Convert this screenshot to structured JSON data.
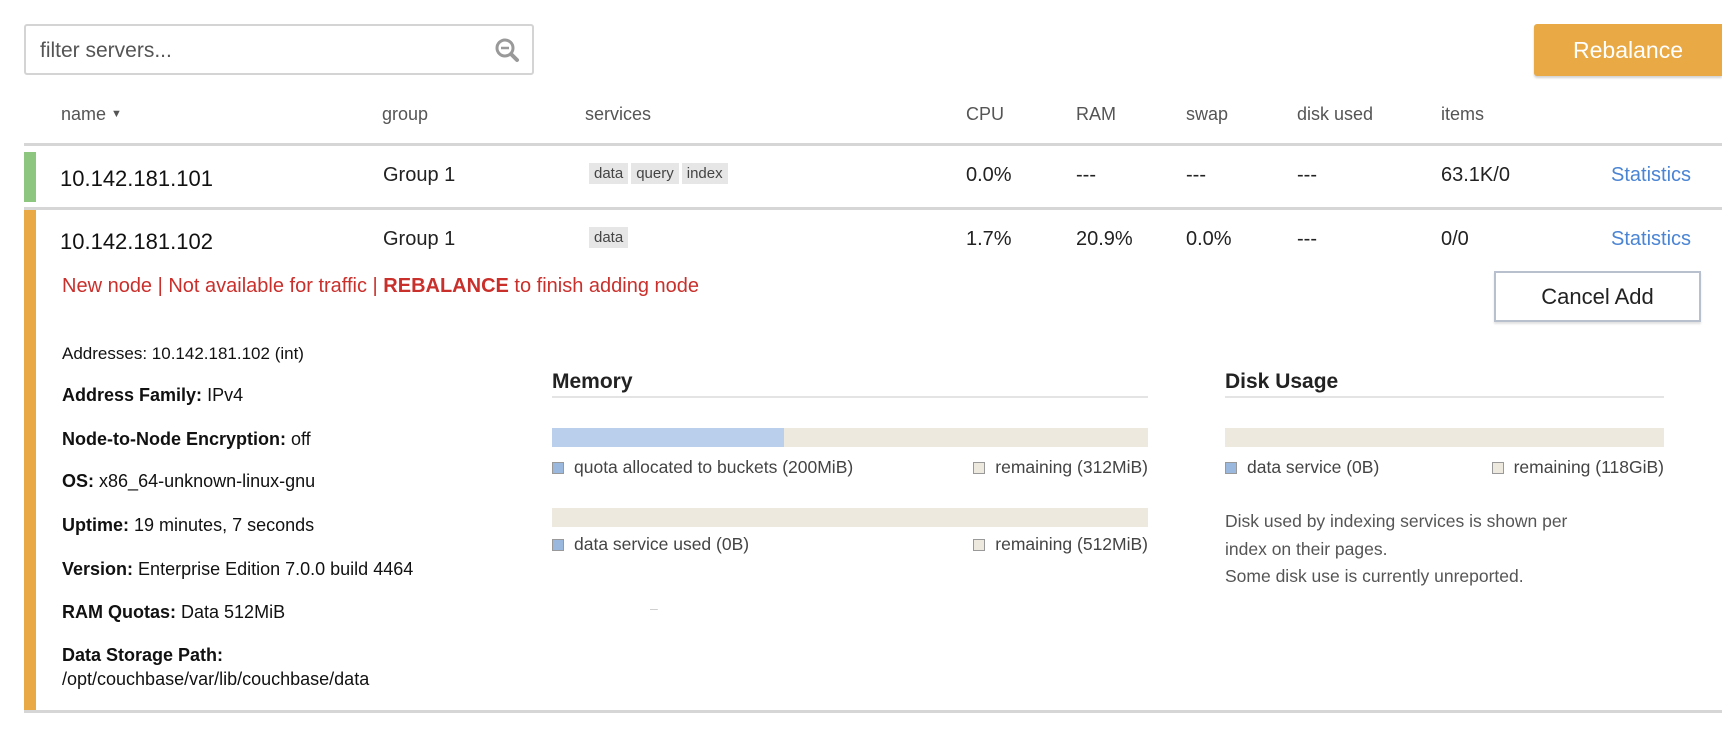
{
  "toolbar": {
    "filter_placeholder": "filter servers...",
    "rebalance_label": "Rebalance"
  },
  "columns": {
    "name": "name",
    "group": "group",
    "services": "services",
    "cpu": "CPU",
    "ram": "RAM",
    "swap": "swap",
    "disk_used": "disk used",
    "items": "items"
  },
  "colors": {
    "accent": "#e9a944",
    "healthy": "#8dc77f",
    "pending": "#e9a944",
    "link": "#4a84d4",
    "warning_text": "#c9302c"
  },
  "servers": [
    {
      "name": "10.142.181.101",
      "group": "Group 1",
      "services": [
        "data",
        "query",
        "index"
      ],
      "cpu": "0.0%",
      "ram": "---",
      "swap": "---",
      "disk_used": "---",
      "items": "63.1K/0",
      "link": "Statistics"
    },
    {
      "name": "10.142.181.102",
      "group": "Group 1",
      "services": [
        "data"
      ],
      "cpu": "1.7%",
      "ram": "20.9%",
      "swap": "0.0%",
      "disk_used": "---",
      "items": "0/0",
      "link": "Statistics"
    }
  ],
  "node_message": {
    "part1": "New node | Not available for traffic | ",
    "bold": "REBALANCE",
    "part2": " to finish adding node"
  },
  "cancel_add_label": "Cancel Add",
  "details": {
    "addresses_label": "Addresses:",
    "addresses_value": "10.142.181.102",
    "addresses_suffix": "(int)",
    "family_label": "Address Family:",
    "family_value": "IPv4",
    "encryption_label": "Node-to-Node Encryption:",
    "encryption_value": "off",
    "os_label": "OS:",
    "os_value": "x86_64-unknown-linux-gnu",
    "uptime_label": "Uptime:",
    "uptime_value": "19 minutes, 7 seconds",
    "version_label": "Version:",
    "version_value": "Enterprise Edition 7.0.0 build 4464",
    "quotas_label": "RAM Quotas:",
    "quotas_value": "Data 512MiB",
    "path_label": "Data Storage Path:",
    "path_value": "/opt/couchbase/var/lib/couchbase/data"
  },
  "memory": {
    "title": "Memory",
    "quota_fraction": 0.39,
    "quota_label": "quota allocated to buckets (200MiB)",
    "quota_remaining": "remaining (312MiB)",
    "used_fraction": 0,
    "used_label": "data service used (0B)",
    "used_remaining": "remaining (512MiB)",
    "dash": "–"
  },
  "disk": {
    "title": "Disk Usage",
    "used_fraction": 0,
    "data_label": "data service (0B)",
    "remaining": "remaining (118GiB)",
    "note1": "Disk used by indexing services is shown per",
    "note2": "index on their pages.",
    "note3": "Some disk use is currently unreported."
  }
}
